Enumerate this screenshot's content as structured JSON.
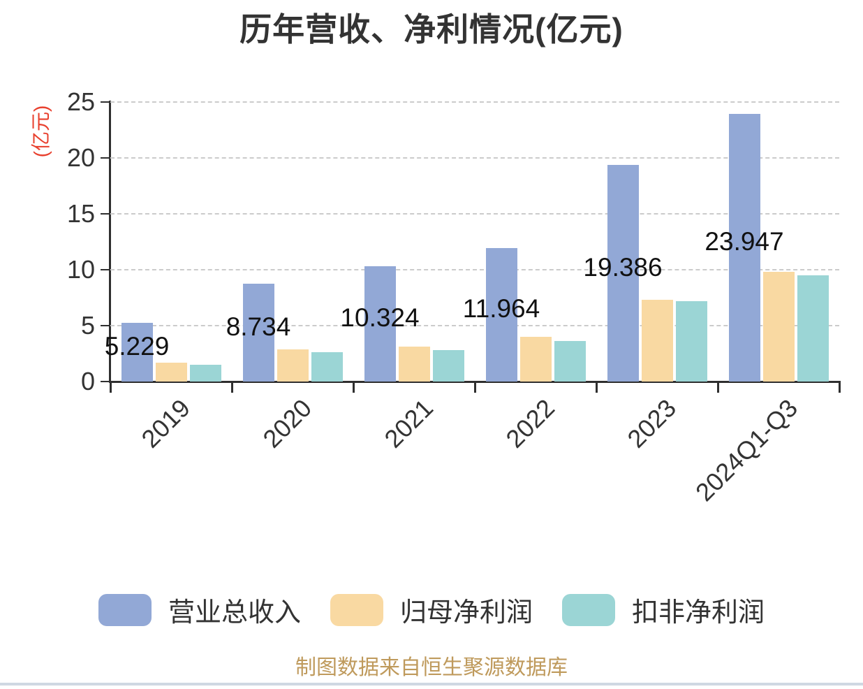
{
  "page": {
    "title": "历年营收、净利情况(亿元)",
    "y_axis_name": "(亿元)",
    "source_note": "制图数据来自恒生聚源数据库"
  },
  "colors": {
    "revenue_blue": "#92A8D6",
    "net_profit_orange": "#F9D9A2",
    "non_gaap_profit_teal": "#9BD5D5",
    "axis": "#2F2F2F",
    "gridline": "#CBCBCB",
    "title_text": "#333333",
    "data_label_text": "#111111",
    "y_axis_name_red": "#E8402E",
    "source_note_gold": "#BF9A5C",
    "bottom_divider": "#CFD8E2"
  },
  "chart_data": {
    "type": "bar",
    "title": "历年营收、净利情况(亿元)",
    "categories": [
      "2019",
      "2020",
      "2021",
      "2022",
      "2023",
      "2024Q1-Q3"
    ],
    "series": [
      {
        "key": "revenue",
        "name": "营业总收入",
        "color": "#92A8D6",
        "values": [
          5.229,
          8.734,
          10.324,
          11.964,
          19.386,
          23.947
        ],
        "data_labels": [
          "5.229",
          "8.734",
          "10.324",
          "11.964",
          "19.386",
          "23.947"
        ]
      },
      {
        "key": "net-profit",
        "name": "归母净利润",
        "color": "#F9D9A2",
        "values": [
          1.7,
          2.9,
          3.1,
          4.0,
          7.3,
          9.8
        ],
        "data_labels": []
      },
      {
        "key": "non-gaap-profit",
        "name": "扣非净利润",
        "color": "#9BD5D5",
        "values": [
          1.5,
          2.6,
          2.8,
          3.65,
          7.2,
          9.5
        ],
        "data_labels": []
      }
    ],
    "ylabel": "(亿元)",
    "ylim": [
      0,
      25
    ],
    "yticks": [
      0,
      5,
      10,
      15,
      20,
      25
    ],
    "grid": "horizontal-dashed",
    "legend_position": "bottom",
    "x_label_rotation": 45
  }
}
